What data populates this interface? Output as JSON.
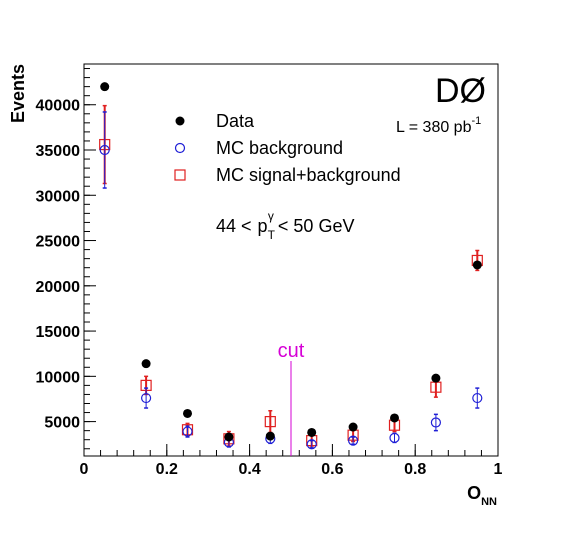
{
  "chart_data": {
    "type": "scatter",
    "experiment_label": "DØ",
    "luminosity": {
      "main": "L = 380 pb",
      "superscript": "-1"
    },
    "xlabel": {
      "main": "O",
      "subscript": "NN"
    },
    "ylabel": "Events",
    "xlim": [
      0,
      1
    ],
    "ylim": [
      1200,
      44500
    ],
    "x_ticks": [
      {
        "value": 0,
        "label": "0"
      },
      {
        "value": 0.2,
        "label": "0.2"
      },
      {
        "value": 0.4,
        "label": "0.4"
      },
      {
        "value": 0.6,
        "label": "0.6"
      },
      {
        "value": 0.8,
        "label": "0.8"
      },
      {
        "value": 1,
        "label": "1"
      }
    ],
    "y_ticks": [
      {
        "value": 5000,
        "label": "5000"
      },
      {
        "value": 10000,
        "label": "10000"
      },
      {
        "value": 15000,
        "label": "15000"
      },
      {
        "value": 20000,
        "label": "20000"
      },
      {
        "value": 25000,
        "label": "25000"
      },
      {
        "value": 30000,
        "label": "30000"
      },
      {
        "value": 35000,
        "label": "35000"
      },
      {
        "value": 40000,
        "label": "40000"
      }
    ],
    "x": [
      0.05,
      0.15,
      0.25,
      0.35,
      0.45,
      0.55,
      0.65,
      0.75,
      0.85,
      0.95
    ],
    "series": [
      {
        "name": "Data",
        "marker": "filled-circle",
        "color": "#000000",
        "values": [
          42000,
          11400,
          5900,
          3300,
          3400,
          3800,
          4400,
          5400,
          9800,
          22300
        ],
        "errors": []
      },
      {
        "name": "MC background",
        "marker": "open-circle",
        "color": "#1f1fd6",
        "values": [
          35000,
          7600,
          3900,
          2700,
          3100,
          2500,
          2900,
          3200,
          4900,
          7600
        ],
        "errors": [
          4200,
          1100,
          600,
          500,
          500,
          400,
          400,
          500,
          900,
          1100
        ]
      },
      {
        "name": "MC signal+background",
        "marker": "open-square",
        "color": "#e02020",
        "values": [
          35600,
          9000,
          4100,
          3100,
          5000,
          2900,
          3500,
          4600,
          8800,
          22800
        ],
        "errors": [
          4300,
          1000,
          700,
          800,
          1200,
          600,
          700,
          700,
          1100,
          1100
        ]
      }
    ],
    "legend_placement": "upper-middle",
    "annotation": {
      "range": {
        "low": "44 <",
        "var": "p",
        "sub": "T",
        "sup": "γ",
        "high": "< 50 GeV"
      }
    },
    "cut": {
      "x": 0.5,
      "top_value": 11700,
      "label": "cut",
      "color": "#d600d6"
    },
    "grid": false
  }
}
